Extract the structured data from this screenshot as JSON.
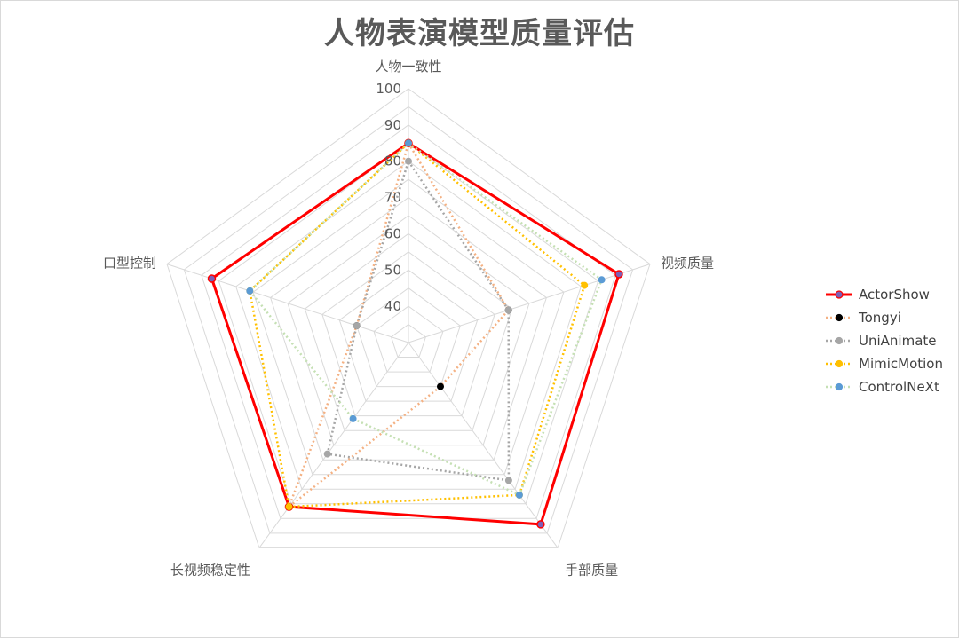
{
  "chart_data": {
    "type": "radar",
    "title": "人物表演模型质量评估",
    "axes": [
      "人物一致性",
      "视频质量",
      "手部质量",
      "长视频稳定性",
      "口型控制"
    ],
    "rlim": [
      30,
      100
    ],
    "ticks": [
      40,
      50,
      60,
      70,
      80,
      90,
      100
    ],
    "grid": true,
    "legend_position": "right",
    "series": [
      {
        "name": "ActorShow",
        "values": [
          85,
          91,
          92,
          86,
          87
        ],
        "color": "#ff0000",
        "marker_color": "#7d5fb5",
        "dash": "solid"
      },
      {
        "name": "Tongyi",
        "values": [
          85,
          59,
          45,
          86,
          45
        ],
        "color": "#f4b183",
        "marker_color": "#000000",
        "dash": "dotted"
      },
      {
        "name": "UniAnimate",
        "values": [
          80,
          59,
          77,
          68,
          45
        ],
        "color": "#a6a6a6",
        "marker_color": "#a6a6a6",
        "dash": "dotted"
      },
      {
        "name": "MimicMotion",
        "values": [
          85,
          81,
          82,
          86,
          76
        ],
        "color": "#ffc000",
        "marker_color": "#ffc000",
        "dash": "dotted"
      },
      {
        "name": "ControlNeXt",
        "values": [
          85,
          86,
          82,
          56,
          76
        ],
        "color": "#c5e0b4",
        "marker_color": "#5b9bd5",
        "dash": "dotted"
      }
    ]
  }
}
